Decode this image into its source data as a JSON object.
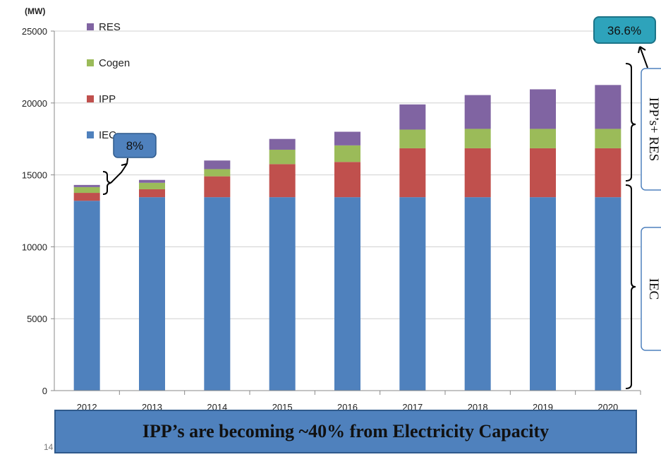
{
  "chart_data": {
    "type": "bar",
    "stacked": true,
    "unit_label": "(MW)",
    "categories": [
      "2012",
      "2013",
      "2014",
      "2015",
      "2016",
      "2017",
      "2018",
      "2019",
      "2020"
    ],
    "ylim": [
      0,
      25000
    ],
    "yticks": [
      0,
      5000,
      10000,
      15000,
      20000,
      25000
    ],
    "grid": true,
    "legend_position": "top-left",
    "series": [
      {
        "name": "IEC",
        "color": "#4f81bd",
        "values": [
          13200,
          13450,
          13450,
          13450,
          13450,
          13450,
          13450,
          13450,
          13450
        ]
      },
      {
        "name": "IPP",
        "color": "#c0504d",
        "values": [
          550,
          550,
          1450,
          2300,
          2450,
          3400,
          3400,
          3400,
          3400
        ]
      },
      {
        "name": "Cogen",
        "color": "#9bbb59",
        "values": [
          400,
          450,
          500,
          1000,
          1150,
          1300,
          1350,
          1350,
          1350
        ]
      },
      {
        "name": "RES",
        "color": "#8064a2",
        "values": [
          150,
          200,
          600,
          750,
          950,
          1750,
          2350,
          2750,
          3050
        ]
      }
    ],
    "legend_order": [
      "RES",
      "Cogen",
      "IPP",
      "IEC"
    ],
    "annotations": {
      "callout_2012": "8%",
      "callout_2020": "36.6%",
      "side_label_top": "IPP’s+ RES",
      "side_label_bottom": "IEC"
    }
  },
  "banner": {
    "text": "IPP’s  are becoming ~40% from Electricity Capacity"
  },
  "page_number": "14"
}
